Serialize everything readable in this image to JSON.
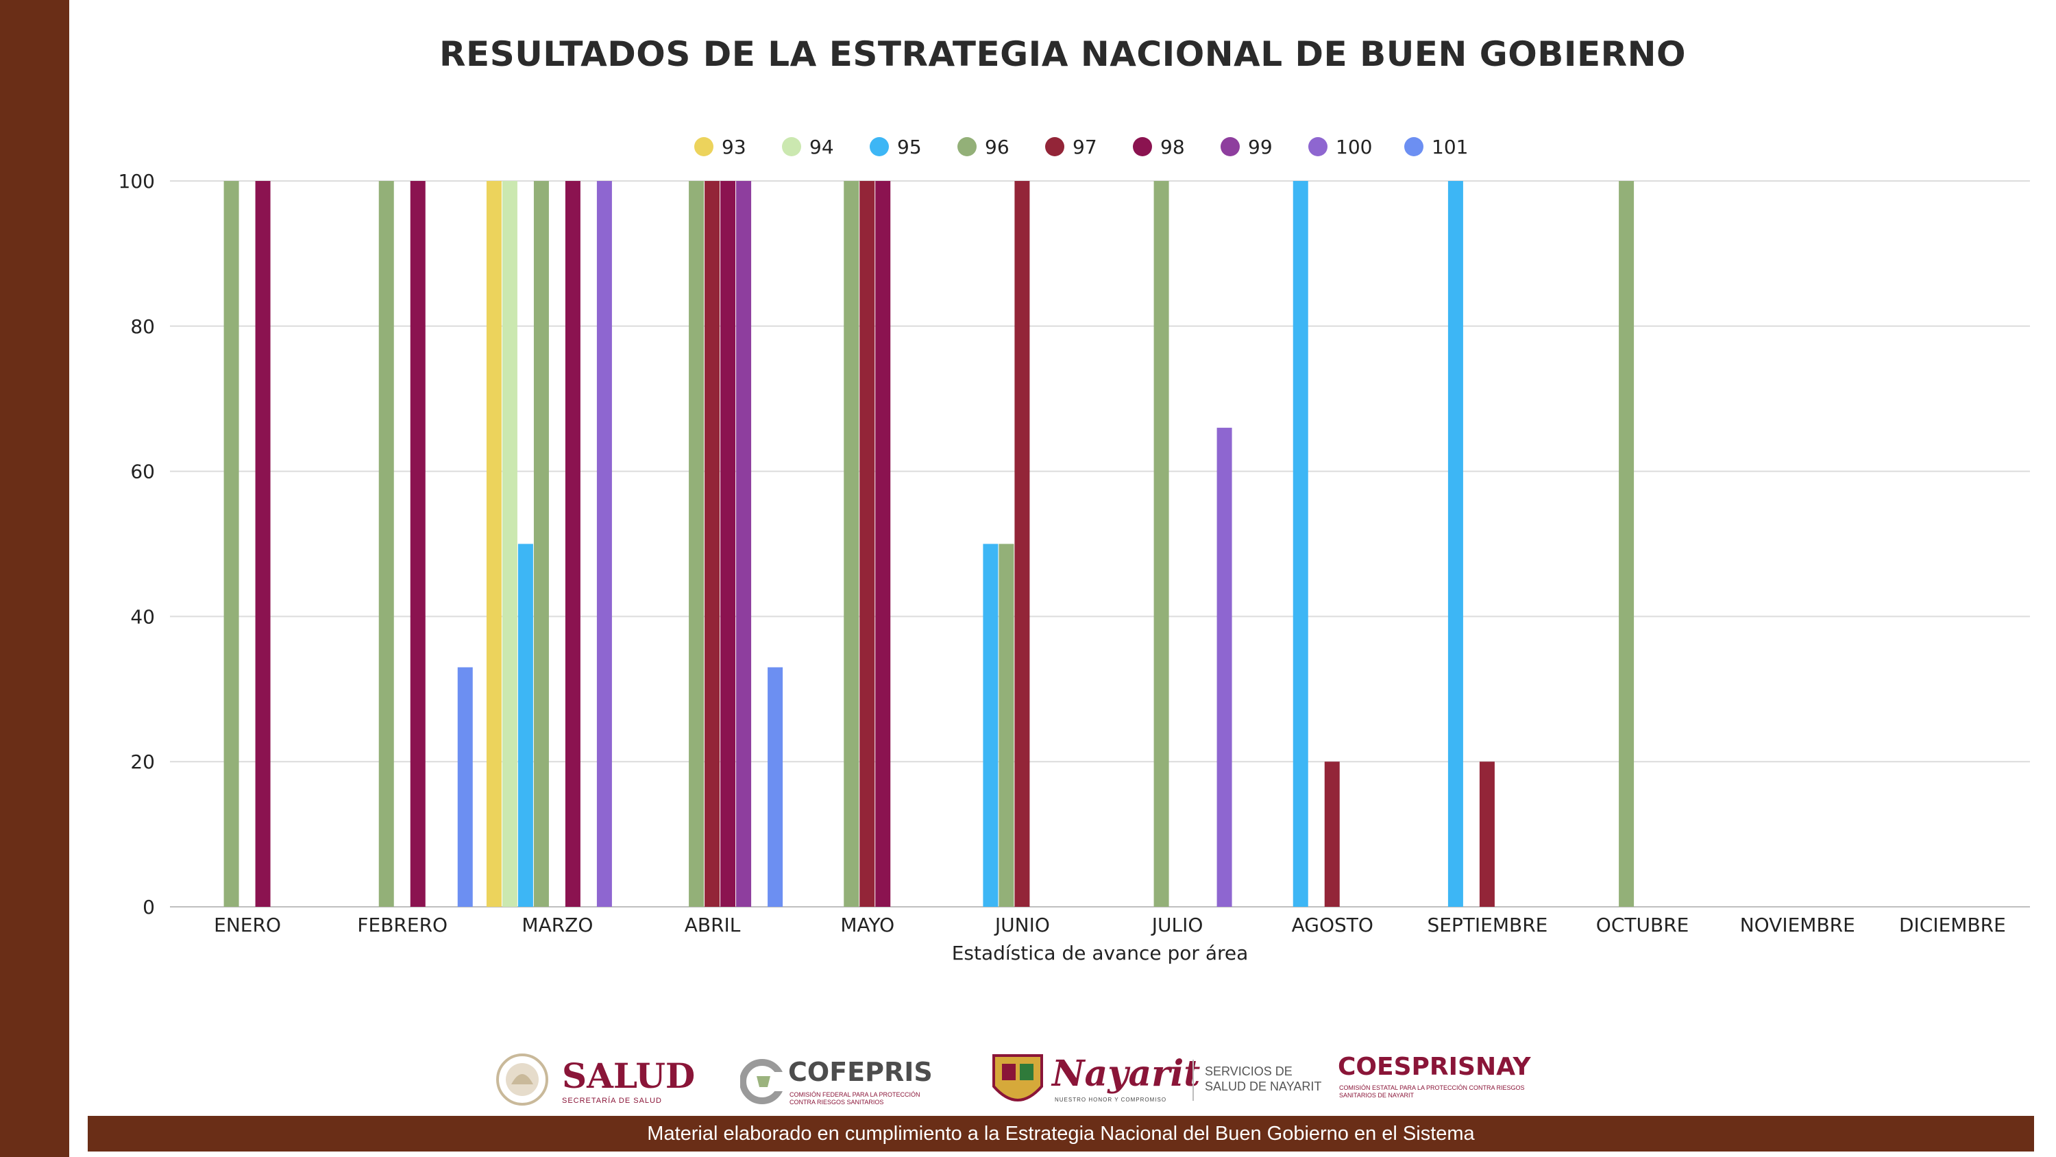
{
  "chart_data": {
    "type": "bar",
    "title": "RESULTADOS DE LA ESTRATEGIA NACIONAL DE BUEN GOBIERNO",
    "xlabel": "Estadística de avance por área",
    "ylabel": "",
    "ylim": [
      0,
      100
    ],
    "yticks": [
      0,
      20,
      40,
      60,
      80,
      100
    ],
    "legend_position": "top-center",
    "grid": true,
    "categories": [
      "ENERO",
      "FEBRERO",
      "MARZO",
      "ABRIL",
      "MAYO",
      "JUNIO",
      "JULIO",
      "AGOSTO",
      "SEPTIEMBRE",
      "OCTUBRE",
      "NOVIEMBRE",
      "DICIEMBRE"
    ],
    "series": [
      {
        "name": "93",
        "color": "#ecd35c",
        "values": [
          0,
          0,
          100,
          0,
          0,
          0,
          0,
          0,
          0,
          0,
          0,
          0
        ]
      },
      {
        "name": "94",
        "color": "#cbe8b0",
        "values": [
          0,
          0,
          100,
          0,
          0,
          0,
          0,
          0,
          0,
          0,
          0,
          0
        ]
      },
      {
        "name": "95",
        "color": "#3db6f5",
        "values": [
          0,
          0,
          50,
          0,
          0,
          50,
          0,
          100,
          100,
          0,
          0,
          0
        ]
      },
      {
        "name": "96",
        "color": "#93b078",
        "values": [
          100,
          100,
          100,
          100,
          100,
          50,
          100,
          0,
          0,
          100,
          0,
          0
        ]
      },
      {
        "name": "97",
        "color": "#932538",
        "values": [
          0,
          0,
          0,
          100,
          100,
          100,
          0,
          20,
          20,
          0,
          0,
          0
        ]
      },
      {
        "name": "98",
        "color": "#8b1350",
        "values": [
          100,
          100,
          100,
          100,
          100,
          0,
          0,
          0,
          0,
          0,
          0,
          0
        ]
      },
      {
        "name": "99",
        "color": "#8e3e9e",
        "values": [
          0,
          0,
          0,
          100,
          0,
          0,
          0,
          0,
          0,
          0,
          0,
          0
        ]
      },
      {
        "name": "100",
        "color": "#8e66d0",
        "values": [
          0,
          0,
          100,
          0,
          0,
          0,
          66,
          0,
          0,
          0,
          0,
          0
        ]
      },
      {
        "name": "101",
        "color": "#6c8ff2",
        "values": [
          0,
          33,
          0,
          33,
          0,
          0,
          0,
          0,
          0,
          0,
          0,
          0
        ]
      }
    ]
  },
  "logos": {
    "salud": "SALUD",
    "salud_sub": "SECRETARÍA DE SALUD",
    "cofepris": "COFEPRIS",
    "cofepris_sub": "COMISIÓN FEDERAL PARA LA PROTECCIÓN CONTRA RIESGOS SANITARIOS",
    "nayarit": "Nayarit",
    "nayarit_sub": "NUESTRO HONOR Y COMPROMISO",
    "servicios_line1": "SERVICIOS DE",
    "servicios_line2": "SALUD DE NAYARIT",
    "coesprisnay": "COESPRISNAY",
    "coesprisnay_sub": "COMISIÓN ESTATAL PARA LA PROTECCIÓN CONTRA RIESGOS SANITARIOS DE NAYARIT"
  },
  "footer": {
    "text": "Material elaborado en cumplimiento a la Estrategia Nacional  del Buen Gobierno en el Sistema"
  },
  "colors": {
    "brand_brown": "#6a2e17",
    "brand_wine": "#8a1538"
  }
}
